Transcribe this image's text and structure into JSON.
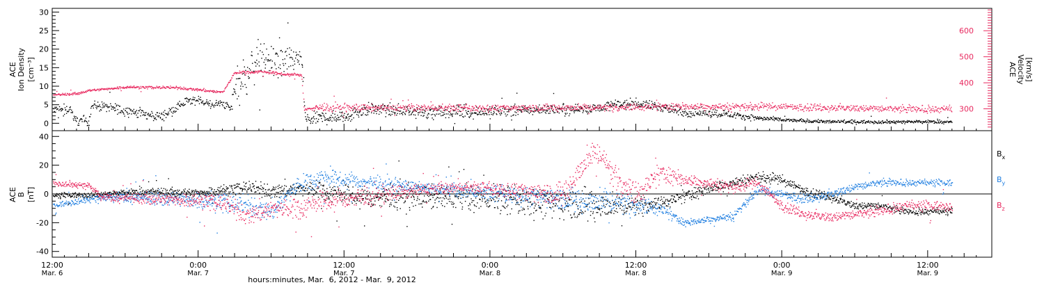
{
  "chart_data": [
    {
      "type": "scatter",
      "panel": "top",
      "ylabel_left": [
        "ACE",
        "Ion Density",
        "[cm⁻³]"
      ],
      "ylabel_right": [
        "ACE",
        "Velocity",
        "[km/s]"
      ],
      "ylim_left": [
        -2,
        31
      ],
      "ylim_right": [
        216,
        686
      ],
      "yticks_left": [
        "0",
        "5",
        "10",
        "15",
        "20",
        "25",
        "30"
      ],
      "yticks_right": [
        "300",
        "400",
        "500",
        "600"
      ],
      "right_axis_color": "#e8295f",
      "x_hours_range": [
        0,
        74
      ],
      "series": [
        {
          "color": "#000000",
          "axis": "left",
          "knots": [
            [
              0,
              3.5
            ],
            [
              1.5,
              4
            ],
            [
              1.8,
              1
            ],
            [
              3,
              0.8
            ],
            [
              3.2,
              5
            ],
            [
              5,
              4.2
            ],
            [
              7,
              3
            ],
            [
              8,
              2.2
            ],
            [
              9,
              2.1
            ],
            [
              10,
              4
            ],
            [
              11,
              6
            ],
            [
              12,
              6.5
            ],
            [
              13,
              5
            ],
            [
              14,
              5.5
            ],
            [
              14.7,
              4
            ],
            [
              15,
              11
            ],
            [
              16,
              13
            ],
            [
              17,
              18
            ],
            [
              18,
              17
            ],
            [
              19,
              16
            ],
            [
              20,
              18
            ],
            [
              20.5,
              17
            ],
            [
              20.8,
              1
            ],
            [
              22,
              1.5
            ],
            [
              24,
              2
            ],
            [
              26,
              4
            ],
            [
              28,
              3.5
            ],
            [
              32,
              3
            ],
            [
              36,
              3.2
            ],
            [
              40,
              3.8
            ],
            [
              44,
              4
            ],
            [
              46,
              5
            ],
            [
              48,
              5.5
            ],
            [
              50,
              4.5
            ],
            [
              52,
              3
            ],
            [
              55,
              2.8
            ],
            [
              58,
              1.5
            ],
            [
              60,
              1
            ],
            [
              64,
              0.5
            ],
            [
              70,
              0.5
            ]
          ],
          "noise": [
            [
              0,
              1.2
            ],
            [
              14.7,
              1
            ],
            [
              15,
              5
            ],
            [
              20.5,
              3
            ],
            [
              20.8,
              1.5
            ],
            [
              55,
              1
            ],
            [
              60,
              0.4
            ]
          ]
        },
        {
          "color": "#e8295f",
          "axis": "right",
          "knots": [
            [
              0,
              355
            ],
            [
              2,
              360
            ],
            [
              3,
              372
            ],
            [
              6,
              385
            ],
            [
              10,
              383
            ],
            [
              12,
              375
            ],
            [
              14,
              365
            ],
            [
              15,
              440
            ],
            [
              17,
              445
            ],
            [
              19,
              435
            ],
            [
              20.5,
              430
            ],
            [
              20.7,
              300
            ],
            [
              22,
              305
            ],
            [
              30,
              305
            ],
            [
              40,
              305
            ],
            [
              50,
              310
            ],
            [
              60,
              310
            ],
            [
              65,
              305
            ],
            [
              70,
              300
            ]
          ],
          "noise": [
            [
              0,
              4
            ],
            [
              20.7,
              5
            ],
            [
              22,
              12
            ],
            [
              70,
              12
            ]
          ]
        }
      ]
    },
    {
      "type": "scatter",
      "panel": "bottom",
      "ylabel_left": [
        "ACE",
        "B",
        "[nT]"
      ],
      "ylim": [
        -44,
        44
      ],
      "yticks": [
        "-40",
        "-20",
        "0",
        "20",
        "40"
      ],
      "zero_line": true,
      "x_hours_range": [
        0,
        74
      ],
      "legend": [
        {
          "label": "B",
          "sub": "x",
          "color": "#000000"
        },
        {
          "label": "B",
          "sub": "y",
          "color": "#1f7ee0"
        },
        {
          "label": "B",
          "sub": "z",
          "color": "#e8295f"
        }
      ],
      "series": [
        {
          "name": "Bx",
          "color": "#000000",
          "knots": [
            [
              0,
              -1
            ],
            [
              4,
              0
            ],
            [
              8,
              2
            ],
            [
              12,
              1
            ],
            [
              14,
              3
            ],
            [
              16,
              5
            ],
            [
              18,
              2
            ],
            [
              20,
              4
            ],
            [
              22,
              3
            ],
            [
              26,
              -3
            ],
            [
              30,
              -2
            ],
            [
              36,
              -3
            ],
            [
              42,
              -6
            ],
            [
              46,
              -8
            ],
            [
              50,
              -6
            ],
            [
              54,
              4
            ],
            [
              56,
              8
            ],
            [
              58,
              12
            ],
            [
              60,
              10
            ],
            [
              62,
              2
            ],
            [
              64,
              -2
            ],
            [
              66,
              -8
            ],
            [
              68,
              -8
            ],
            [
              70,
              -12
            ]
          ],
          "noise": [
            [
              0,
              1.5
            ],
            [
              14,
              3
            ],
            [
              20,
              5
            ],
            [
              44,
              10
            ],
            [
              50,
              4
            ],
            [
              70,
              2
            ]
          ]
        },
        {
          "name": "By",
          "color": "#1f7ee0",
          "knots": [
            [
              0,
              -8
            ],
            [
              3,
              -3
            ],
            [
              6,
              -2
            ],
            [
              10,
              -3
            ],
            [
              14,
              -5
            ],
            [
              16,
              -8
            ],
            [
              18,
              -12
            ],
            [
              20,
              5
            ],
            [
              22,
              12
            ],
            [
              26,
              8
            ],
            [
              30,
              5
            ],
            [
              34,
              2
            ],
            [
              38,
              0
            ],
            [
              42,
              -3
            ],
            [
              44,
              -5
            ],
            [
              46,
              -4
            ],
            [
              50,
              -10
            ],
            [
              52,
              -20
            ],
            [
              56,
              -15
            ],
            [
              58,
              3
            ],
            [
              62,
              -3
            ],
            [
              64,
              0
            ],
            [
              66,
              5
            ],
            [
              68,
              8
            ],
            [
              70,
              8
            ]
          ],
          "noise": [
            [
              0,
              1.5
            ],
            [
              14,
              6
            ],
            [
              20,
              6
            ],
            [
              30,
              3
            ],
            [
              46,
              8
            ],
            [
              52,
              2
            ],
            [
              62,
              3
            ],
            [
              70,
              2
            ]
          ]
        },
        {
          "name": "Bz",
          "color": "#e8295f",
          "knots": [
            [
              0,
              8
            ],
            [
              3,
              6
            ],
            [
              4,
              -2
            ],
            [
              8,
              -3
            ],
            [
              12,
              -4
            ],
            [
              14,
              -6
            ],
            [
              16,
              -15
            ],
            [
              18,
              -10
            ],
            [
              20,
              -10
            ],
            [
              22,
              -5
            ],
            [
              26,
              -2
            ],
            [
              30,
              3
            ],
            [
              34,
              5
            ],
            [
              38,
              3
            ],
            [
              42,
              0
            ],
            [
              44,
              25
            ],
            [
              45,
              30
            ],
            [
              46,
              15
            ],
            [
              48,
              0
            ],
            [
              50,
              15
            ],
            [
              52,
              10
            ],
            [
              56,
              5
            ],
            [
              58,
              8
            ],
            [
              60,
              -8
            ],
            [
              62,
              -14
            ],
            [
              64,
              -16
            ],
            [
              66,
              -14
            ],
            [
              68,
              -12
            ],
            [
              70,
              -8
            ]
          ],
          "noise": [
            [
              0,
              1.5
            ],
            [
              14,
              5
            ],
            [
              20,
              7
            ],
            [
              34,
              3
            ],
            [
              44,
              8
            ],
            [
              48,
              8
            ],
            [
              52,
              4
            ],
            [
              60,
              3
            ],
            [
              70,
              3
            ]
          ]
        }
      ]
    }
  ],
  "x_axis": {
    "major_ticks": [
      {
        "hour": 0,
        "time": "12:00",
        "date": "Mar. 6"
      },
      {
        "hour": 12,
        "time": "0:00",
        "date": "Mar. 7"
      },
      {
        "hour": 24,
        "time": "12:00",
        "date": "Mar. 7"
      },
      {
        "hour": 36,
        "time": "0:00",
        "date": "Mar. 8"
      },
      {
        "hour": 48,
        "time": "12:00",
        "date": "Mar. 8"
      },
      {
        "hour": 60,
        "time": "0:00",
        "date": "Mar. 9"
      },
      {
        "hour": 72,
        "time": "12:00",
        "date": "Mar. 9"
      }
    ],
    "title": "hours:minutes, Mar.  6, 2012 - Mar.  9, 2012"
  }
}
